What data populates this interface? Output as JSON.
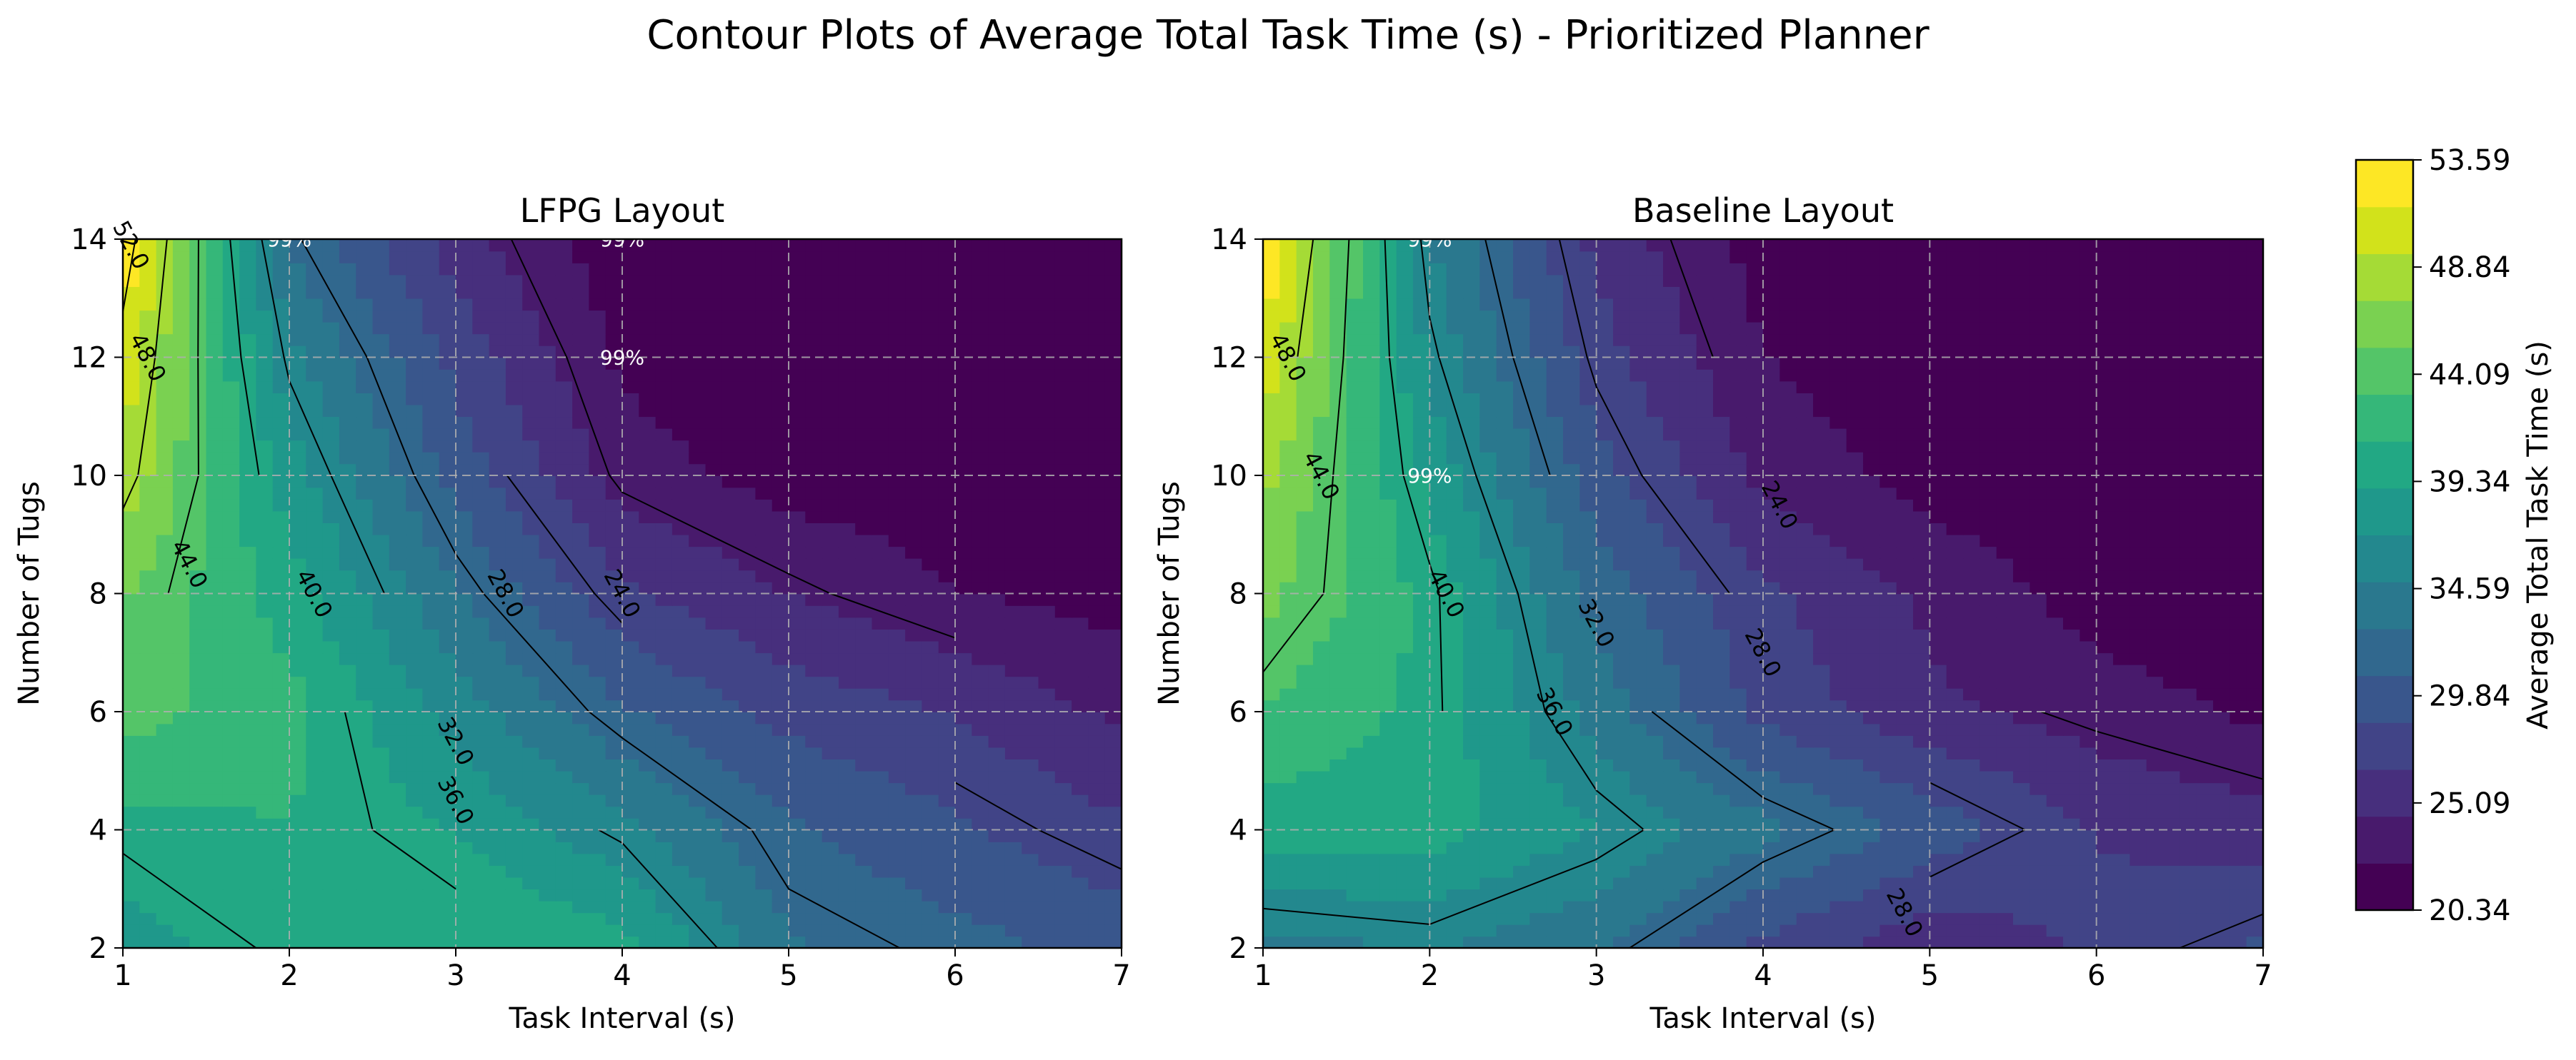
{
  "figure": {
    "suptitle": "Contour Plots of Average Total Task Time (s) - Prioritized Planner"
  },
  "colors": {
    "levels": [
      "#440154",
      "#481a6c",
      "#472f7d",
      "#414487",
      "#39568c",
      "#31688e",
      "#2a788e",
      "#23888e",
      "#1f988b",
      "#22a884",
      "#35b779",
      "#54c568",
      "#7ad151",
      "#a5db36",
      "#d2e21b",
      "#fde725"
    ]
  },
  "colorbar": {
    "label": "Average Total Task Time (s)",
    "min": 20.34,
    "max": 53.59,
    "ticks": [
      "20.34",
      "25.09",
      "29.84",
      "34.59",
      "39.34",
      "44.09",
      "48.84",
      "53.59"
    ]
  },
  "chart_data": [
    {
      "type": "heatmap",
      "title": "LFPG Layout",
      "xlabel": "Task Interval (s)",
      "ylabel": "Number of Tugs",
      "x": [
        1,
        2,
        3,
        4,
        5,
        6,
        7
      ],
      "y": [
        2,
        4,
        6,
        8,
        10,
        12,
        14
      ],
      "xlim": [
        1,
        7
      ],
      "ylim": [
        2,
        14
      ],
      "xticks": [
        "1",
        "2",
        "3",
        "4",
        "5",
        "6",
        "7"
      ],
      "yticks": [
        "2",
        "4",
        "6",
        "8",
        "10",
        "12",
        "14"
      ],
      "grid": true,
      "z": [
        [
          38.0,
          40.5,
          41.0,
          40.0,
          33.0,
          31.5,
          30.0
        ],
        [
          40.5,
          41.0,
          39.0,
          35.5,
          31.0,
          29.0,
          27.0
        ],
        [
          44.0,
          42.0,
          36.0,
          31.0,
          28.0,
          26.5,
          24.0
        ],
        [
          45.5,
          40.0,
          33.0,
          27.0,
          24.5,
          22.5,
          21.5
        ],
        [
          49.0,
          38.0,
          30.0,
          23.5,
          21.5,
          21.0,
          20.5
        ],
        [
          51.0,
          35.5,
          28.0,
          22.0,
          20.5,
          20.4,
          20.4
        ],
        [
          53.59,
          32.5,
          25.5,
          21.0,
          20.4,
          20.34,
          20.34
        ]
      ],
      "contour_levels": [
        24.0,
        28.0,
        32.0,
        36.0,
        40.0,
        44.0,
        48.0,
        52.0
      ],
      "contour_labels": [
        {
          "text": "24.0",
          "x": 4.0,
          "y": 8.0
        },
        {
          "text": "28.0",
          "x": 3.3,
          "y": 8.0
        },
        {
          "text": "32.0",
          "x": 3.0,
          "y": 5.5
        },
        {
          "text": "36.0",
          "x": 3.0,
          "y": 4.5
        },
        {
          "text": "40.0",
          "x": 2.15,
          "y": 8.0
        },
        {
          "text": "44.0",
          "x": 1.4,
          "y": 8.5
        },
        {
          "text": "48.0",
          "x": 1.15,
          "y": 12.0
        },
        {
          "text": "52.0",
          "x": 1.05,
          "y": 13.9
        }
      ],
      "annotations": [
        {
          "text": "99%",
          "x": 2.0,
          "y": 14.0
        },
        {
          "text": "99%",
          "x": 4.0,
          "y": 14.0
        },
        {
          "text": "99%",
          "x": 4.0,
          "y": 12.0
        }
      ]
    },
    {
      "type": "heatmap",
      "title": "Baseline Layout",
      "xlabel": "Task Interval (s)",
      "ylabel": "Number of Tugs",
      "x": [
        1,
        2,
        3,
        4,
        5,
        6,
        7
      ],
      "y": [
        2,
        4,
        6,
        8,
        10,
        12,
        14
      ],
      "xlim": [
        1,
        7
      ],
      "ylim": [
        2,
        14
      ],
      "xticks": [
        "1",
        "2",
        "3",
        "4",
        "5",
        "6",
        "7"
      ],
      "yticks": [
        "2",
        "4",
        "6",
        "8",
        "10",
        "12",
        "14"
      ],
      "grid": true,
      "z": [
        [
          34.0,
          35.0,
          33.0,
          28.0,
          25.0,
          27.0,
          29.0
        ],
        [
          40.0,
          40.0,
          37.0,
          33.5,
          30.0,
          26.5,
          25.5
        ],
        [
          43.0,
          40.5,
          34.0,
          28.0,
          25.0,
          23.5,
          22.0
        ],
        [
          46.0,
          40.5,
          32.0,
          27.0,
          24.0,
          21.5,
          20.6
        ],
        [
          48.0,
          38.5,
          29.5,
          24.0,
          21.5,
          20.5,
          20.4
        ],
        [
          51.0,
          36.5,
          27.5,
          22.5,
          20.5,
          20.4,
          20.34
        ],
        [
          53.59,
          35.0,
          26.0,
          21.5,
          20.4,
          20.34,
          20.34
        ]
      ],
      "contour_levels": [
        24.0,
        28.0,
        32.0,
        36.0,
        40.0,
        44.0,
        48.0
      ],
      "contour_labels": [
        {
          "text": "24.0",
          "x": 4.1,
          "y": 9.5
        },
        {
          "text": "28.0",
          "x": 4.0,
          "y": 7.0
        },
        {
          "text": "28.0",
          "x": 4.85,
          "y": 2.6
        },
        {
          "text": "32.0",
          "x": 3.0,
          "y": 7.5
        },
        {
          "text": "36.0",
          "x": 2.75,
          "y": 6.0
        },
        {
          "text": "40.0",
          "x": 2.1,
          "y": 8.0
        },
        {
          "text": "44.0",
          "x": 1.35,
          "y": 10.0
        },
        {
          "text": "48.0",
          "x": 1.15,
          "y": 12.0
        }
      ],
      "annotations": [
        {
          "text": "99%",
          "x": 2.0,
          "y": 14.0
        },
        {
          "text": "99%",
          "x": 2.0,
          "y": 10.0
        }
      ]
    }
  ]
}
